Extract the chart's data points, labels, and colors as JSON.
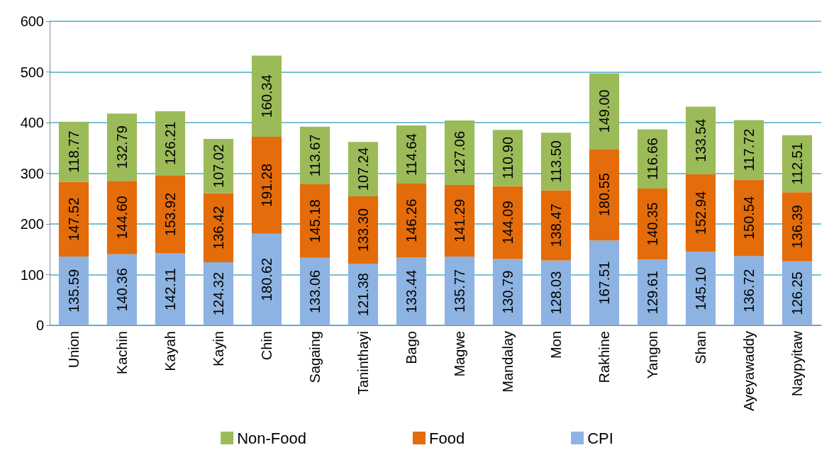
{
  "chart_data": {
    "type": "bar",
    "stacked": true,
    "categories": [
      "Union",
      "Kachin",
      "Kayah",
      "Kayin",
      "Chin",
      "Sagaing",
      "Taninthayi",
      "Bago",
      "Magwe",
      "Mandalay",
      "Mon",
      "Rakhine",
      "Yangon",
      "Shan",
      "Ayeyawaddy",
      "Naypyitaw"
    ],
    "series": [
      {
        "name": "CPI",
        "color": "#8db3e2",
        "values": [
          135.59,
          140.36,
          142.11,
          124.32,
          180.62,
          133.06,
          121.38,
          133.44,
          135.77,
          130.79,
          128.03,
          167.51,
          129.61,
          145.1,
          136.72,
          126.25
        ],
        "value_labels": [
          "135.59",
          "140.36",
          "142.11",
          "124.32",
          "180.62",
          "133.06",
          "121.38",
          "133.44",
          "135.77",
          "130.79",
          "128.03",
          "167.51",
          "129.61",
          "145.10",
          "136.72",
          "126.25"
        ]
      },
      {
        "name": "Food",
        "color": "#e46c0a",
        "values": [
          147.52,
          144.6,
          153.92,
          136.42,
          191.28,
          145.18,
          133.3,
          146.26,
          141.29,
          144.09,
          138.47,
          180.55,
          140.35,
          152.94,
          150.54,
          136.39
        ],
        "value_labels": [
          "147.52",
          "144.60",
          "153.92",
          "136.42",
          "191.28",
          "145.18",
          "133.30",
          "146.26",
          "141.29",
          "144.09",
          "138.47",
          "180.55",
          "140.35",
          "152.94",
          "150.54",
          "136.39"
        ]
      },
      {
        "name": "Non-Food",
        "color": "#9bbb59",
        "values": [
          118.77,
          132.79,
          126.21,
          107.02,
          160.34,
          113.67,
          107.24,
          114.64,
          127.06,
          110.9,
          113.5,
          149.0,
          116.66,
          133.54,
          117.72,
          112.51
        ],
        "value_labels": [
          "118.77",
          "132.79",
          "126.21",
          "107.02",
          "160.34",
          "113.67",
          "107.24",
          "114.64",
          "127.06",
          "110.90",
          "113.50",
          "149.00",
          "116.66",
          "133.54",
          "117.72",
          "112.51"
        ]
      }
    ],
    "ylim": [
      0,
      600
    ],
    "yticks": [
      0,
      100,
      200,
      300,
      400,
      500,
      600
    ],
    "grid": "y",
    "legend": "bottom"
  }
}
